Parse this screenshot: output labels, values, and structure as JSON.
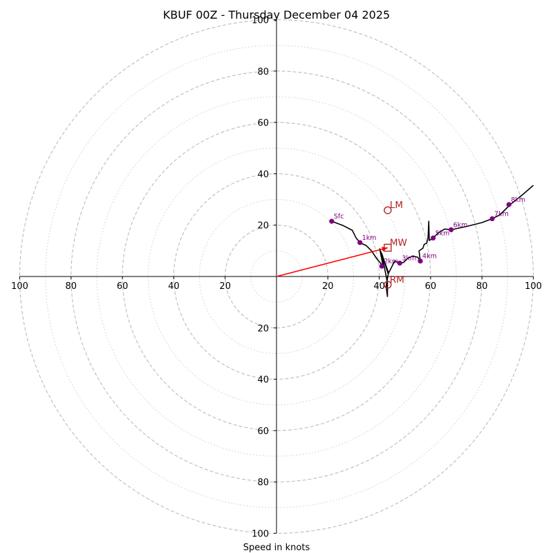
{
  "chart_data": {
    "type": "hodograph",
    "title": "KBUF 00Z - Thursday December 04 2025",
    "xlabel": "Speed in knots",
    "units": "knots",
    "range": [
      -100,
      100
    ],
    "rings_major": [
      20,
      40,
      60,
      80,
      100
    ],
    "rings_minor": [
      10,
      30,
      50,
      70,
      90
    ],
    "axis_tick_labels": [
      "100",
      "80",
      "60",
      "40",
      "20",
      "20",
      "40",
      "60",
      "80",
      "100"
    ],
    "colors": {
      "trace": "#000000",
      "height_markers": "#800080",
      "storm_motion": "#b22222",
      "mean_wind_vector": "#ff0000",
      "grid": "#bbbbbb"
    },
    "trace": [
      [
        21.5,
        21.5
      ],
      [
        26,
        19.8
      ],
      [
        29.5,
        18
      ],
      [
        31,
        15
      ],
      [
        32.5,
        13.2
      ],
      [
        35,
        12
      ],
      [
        37,
        10
      ],
      [
        39,
        7
      ],
      [
        41.5,
        4
      ],
      [
        40.2,
        10.8
      ],
      [
        43.6,
        1.6
      ],
      [
        42.7,
        -3.8
      ],
      [
        43.2,
        -7.8
      ],
      [
        43.2,
        -2.5
      ],
      [
        41,
        9
      ],
      [
        43.5,
        1
      ],
      [
        46,
        6
      ],
      [
        48,
        5.2
      ],
      [
        49.5,
        5.5
      ],
      [
        51,
        7
      ],
      [
        53,
        8
      ],
      [
        55,
        7.5
      ],
      [
        56,
        6
      ],
      [
        55.5,
        10
      ],
      [
        57,
        11
      ],
      [
        57.5,
        12.5
      ],
      [
        58.5,
        13
      ],
      [
        59,
        15
      ],
      [
        59.3,
        21.5
      ],
      [
        59.5,
        14
      ],
      [
        61,
        15
      ],
      [
        63,
        17
      ],
      [
        65.5,
        18.5
      ],
      [
        68,
        18.2
      ],
      [
        74,
        19.5
      ],
      [
        80,
        21
      ],
      [
        84,
        22.5
      ],
      [
        87,
        24
      ],
      [
        91,
        28
      ],
      [
        96,
        32
      ],
      [
        100,
        35.5
      ]
    ],
    "height_markers": [
      {
        "label": "Sfc",
        "u": 21.5,
        "v": 21.5
      },
      {
        "label": "1km",
        "u": 32.5,
        "v": 13.2
      },
      {
        "label": "2km",
        "u": 41,
        "v": 4
      },
      {
        "label": "3km",
        "u": 48,
        "v": 5.2
      },
      {
        "label": "4km",
        "u": 56,
        "v": 6
      },
      {
        "label": "5km",
        "u": 61,
        "v": 15
      },
      {
        "label": "6km",
        "u": 68,
        "v": 18.2
      },
      {
        "label": "7km",
        "u": 84,
        "v": 22.5
      },
      {
        "label": "8km",
        "u": 90.5,
        "v": 28
      }
    ],
    "storm_motion": [
      {
        "label": "LM",
        "u": 43.3,
        "v": 25.8,
        "marker": "circle"
      },
      {
        "label": "MW",
        "u": 43.3,
        "v": 11.2,
        "marker": "square"
      },
      {
        "label": "RM",
        "u": 43.3,
        "v": -3.2,
        "marker": "circle"
      }
    ],
    "mean_wind_vector": {
      "from": [
        0,
        0
      ],
      "to": [
        43.3,
        11.2
      ]
    }
  }
}
